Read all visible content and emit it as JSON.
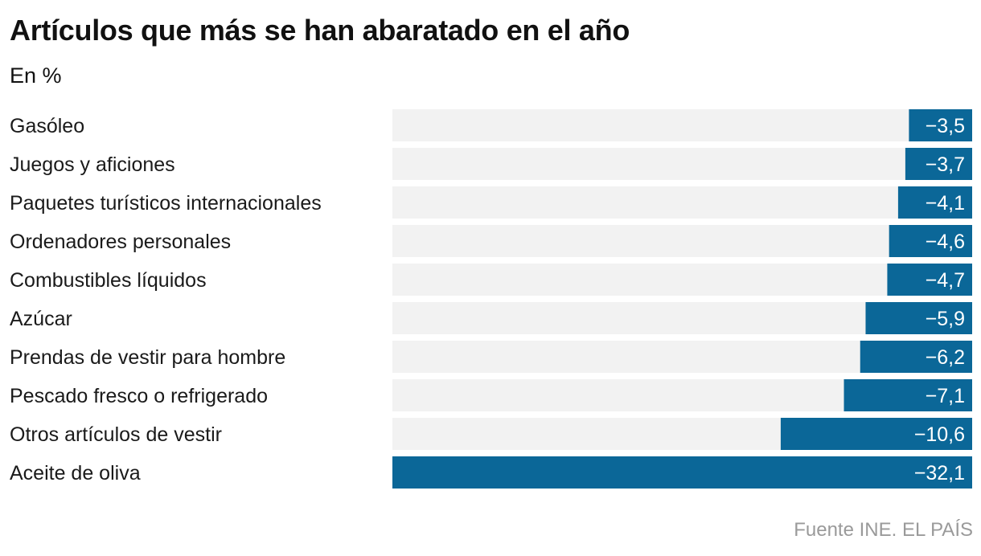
{
  "title": "Artículos que más se han abaratado en el año",
  "subtitle": "En %",
  "source": "Fuente INE. EL PAÍS",
  "colors": {
    "bar": "#0b6798",
    "track": "#f2f2f2"
  },
  "chart_data": {
    "type": "bar",
    "orientation": "horizontal",
    "title": "Artículos que más se han abaratado en el año",
    "subtitle": "En %",
    "categories": [
      "Gasóleo",
      "Juegos y aficiones",
      "Paquetes turísticos internacionales",
      "Ordenadores personales",
      "Combustibles líquidos",
      "Azúcar",
      "Prendas de vestir para hombre",
      "Pescado fresco o refrigerado",
      "Otros artículos de vestir",
      "Aceite de oliva"
    ],
    "values": [
      -3.5,
      -3.7,
      -4.1,
      -4.6,
      -4.7,
      -5.9,
      -6.2,
      -7.1,
      -10.6,
      -32.1
    ],
    "value_labels": [
      "−3,5",
      "−3,7",
      "−4,1",
      "−4,6",
      "−4,7",
      "−5,9",
      "−6,2",
      "−7,1",
      "−10,6",
      "−32,1"
    ],
    "xlim": [
      -32.1,
      0
    ],
    "grid": false,
    "legend": "none"
  }
}
